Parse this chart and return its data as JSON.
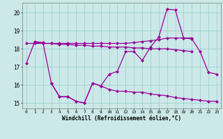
{
  "x": [
    0,
    1,
    2,
    3,
    4,
    5,
    6,
    7,
    8,
    9,
    10,
    11,
    12,
    13,
    14,
    15,
    16,
    17,
    18,
    19,
    20,
    21,
    22,
    23
  ],
  "line_upper1": [
    18.3,
    18.3,
    18.3,
    18.3,
    18.3,
    18.3,
    18.3,
    18.3,
    18.3,
    18.3,
    18.3,
    18.3,
    18.3,
    18.35,
    18.4,
    18.45,
    18.5,
    18.6,
    18.6,
    18.6,
    18.6,
    null,
    null,
    null
  ],
  "line_upper2": [
    null,
    18.35,
    18.3,
    18.3,
    18.25,
    18.25,
    18.2,
    18.2,
    18.15,
    18.15,
    18.1,
    18.1,
    18.1,
    18.05,
    18.05,
    18.0,
    18.0,
    18.0,
    17.95,
    17.9,
    17.85,
    null,
    null,
    null
  ],
  "line_zigzag": [
    17.2,
    18.4,
    18.35,
    16.1,
    15.35,
    15.35,
    15.1,
    15.0,
    16.1,
    15.95,
    16.6,
    16.75,
    17.85,
    17.85,
    17.35,
    18.1,
    18.65,
    20.2,
    20.15,
    18.6,
    18.55,
    17.85,
    16.7,
    16.6
  ],
  "line_lower": [
    null,
    null,
    null,
    16.1,
    15.35,
    15.35,
    15.1,
    15.0,
    16.1,
    15.95,
    15.75,
    15.65,
    15.65,
    15.6,
    15.6,
    15.5,
    15.45,
    15.4,
    15.3,
    15.25,
    15.2,
    15.15,
    15.1,
    15.1
  ],
  "bg_color": "#cce8e8",
  "line_color": "#990099",
  "grid_color": "#99cccc",
  "ylabel_values": [
    15,
    16,
    17,
    18,
    19,
    20
  ],
  "xlabel": "Windchill (Refroidissement éolien,°C)",
  "ylim": [
    14.7,
    20.55
  ],
  "xlim": [
    -0.5,
    23.5
  ]
}
